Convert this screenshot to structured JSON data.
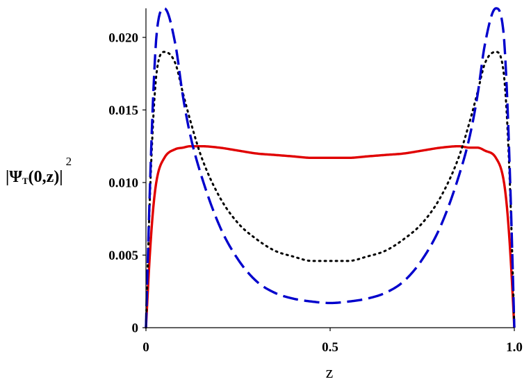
{
  "chart_data": {
    "type": "line",
    "xlabel": "z",
    "ylabel": {
      "prefix": "|Ψ",
      "subscript": "T",
      "suffix": "(0,z)|",
      "superscript": "2"
    },
    "xlim": [
      0,
      1
    ],
    "ylim": [
      0,
      0.022
    ],
    "x_ticks": [
      "0",
      "0.5",
      "1.0"
    ],
    "y_ticks": [
      "0",
      "0.005",
      "0.010",
      "0.015",
      "0.020"
    ],
    "grid": false,
    "legend": "none",
    "x": [
      0,
      0.01,
      0.02,
      0.03,
      0.05,
      0.08,
      0.1,
      0.12,
      0.15,
      0.2,
      0.25,
      0.3,
      0.35,
      0.4,
      0.45,
      0.5,
      0.55,
      0.6,
      0.65,
      0.7,
      0.75,
      0.8,
      0.85,
      0.88,
      0.9,
      0.92,
      0.95,
      0.97,
      0.98,
      0.99,
      1.0
    ],
    "series": [
      {
        "color": "#e00000",
        "style": "solid",
        "values": [
          0,
          0.0048,
          0.0083,
          0.0103,
          0.0117,
          0.0123,
          0.0124,
          0.0125,
          0.0125,
          0.0124,
          0.0122,
          0.012,
          0.0119,
          0.0118,
          0.0117,
          0.0117,
          0.0117,
          0.0118,
          0.0119,
          0.012,
          0.0122,
          0.0124,
          0.0125,
          0.0124,
          0.0124,
          0.0122,
          0.0117,
          0.0103,
          0.0083,
          0.0048,
          0
        ]
      },
      {
        "color": "#000000",
        "style": "dotted",
        "values": [
          0,
          0.0085,
          0.0145,
          0.0178,
          0.019,
          0.0182,
          0.0162,
          0.0143,
          0.0118,
          0.009,
          0.0072,
          0.0061,
          0.0053,
          0.0049,
          0.0046,
          0.0046,
          0.0046,
          0.0049,
          0.0053,
          0.0061,
          0.0072,
          0.009,
          0.0118,
          0.0143,
          0.0162,
          0.0182,
          0.019,
          0.0178,
          0.0145,
          0.0085,
          0
        ]
      },
      {
        "color": "#0000cc",
        "style": "dashed",
        "values": [
          0,
          0.009,
          0.0162,
          0.0205,
          0.022,
          0.0195,
          0.016,
          0.0133,
          0.0105,
          0.007,
          0.0047,
          0.0032,
          0.0024,
          0.002,
          0.0018,
          0.0017,
          0.0018,
          0.002,
          0.0024,
          0.0032,
          0.0047,
          0.007,
          0.0105,
          0.0133,
          0.016,
          0.0195,
          0.022,
          0.0205,
          0.0162,
          0.009,
          0
        ]
      }
    ]
  }
}
